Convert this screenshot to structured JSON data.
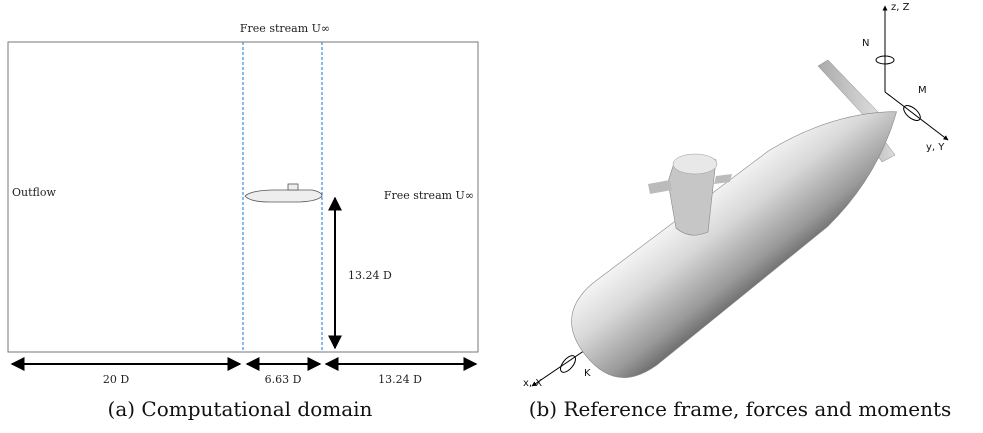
{
  "panel_a": {
    "top_label": "Free stream U∞",
    "left_label": "Outflow",
    "right_label": "Free stream U∞",
    "height_label": "13.24 D",
    "bottom_labels": [
      "20 D",
      "6.63 D",
      "13.24 D"
    ],
    "caption": "(a) Computational domain"
  },
  "panel_b": {
    "z_axis": "z, Z",
    "y_axis": "y, Y",
    "x_axis": "x, X",
    "moment_z": "N",
    "moment_y": "M",
    "moment_x": "K",
    "caption": "(b) Reference frame, forces and moments"
  }
}
